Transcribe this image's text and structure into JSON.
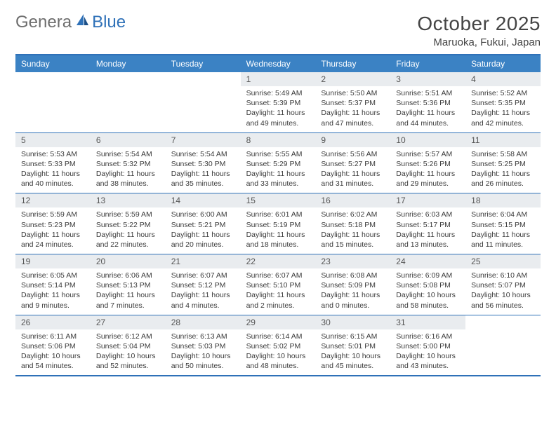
{
  "brand": {
    "part1": "Genera",
    "part2": "Blue"
  },
  "title": "October 2025",
  "location": "Maruoka, Fukui, Japan",
  "colors": {
    "header_bg": "#3b82c4",
    "border": "#2f71b8",
    "daynum_bg": "#e9ecef",
    "text": "#333333",
    "page_bg": "#ffffff"
  },
  "dow": [
    "Sunday",
    "Monday",
    "Tuesday",
    "Wednesday",
    "Thursday",
    "Friday",
    "Saturday"
  ],
  "weeks": [
    [
      {
        "n": "",
        "lines": []
      },
      {
        "n": "",
        "lines": []
      },
      {
        "n": "",
        "lines": []
      },
      {
        "n": "1",
        "lines": [
          "Sunrise: 5:49 AM",
          "Sunset: 5:39 PM",
          "Daylight: 11 hours",
          "and 49 minutes."
        ]
      },
      {
        "n": "2",
        "lines": [
          "Sunrise: 5:50 AM",
          "Sunset: 5:37 PM",
          "Daylight: 11 hours",
          "and 47 minutes."
        ]
      },
      {
        "n": "3",
        "lines": [
          "Sunrise: 5:51 AM",
          "Sunset: 5:36 PM",
          "Daylight: 11 hours",
          "and 44 minutes."
        ]
      },
      {
        "n": "4",
        "lines": [
          "Sunrise: 5:52 AM",
          "Sunset: 5:35 PM",
          "Daylight: 11 hours",
          "and 42 minutes."
        ]
      }
    ],
    [
      {
        "n": "5",
        "lines": [
          "Sunrise: 5:53 AM",
          "Sunset: 5:33 PM",
          "Daylight: 11 hours",
          "and 40 minutes."
        ]
      },
      {
        "n": "6",
        "lines": [
          "Sunrise: 5:54 AM",
          "Sunset: 5:32 PM",
          "Daylight: 11 hours",
          "and 38 minutes."
        ]
      },
      {
        "n": "7",
        "lines": [
          "Sunrise: 5:54 AM",
          "Sunset: 5:30 PM",
          "Daylight: 11 hours",
          "and 35 minutes."
        ]
      },
      {
        "n": "8",
        "lines": [
          "Sunrise: 5:55 AM",
          "Sunset: 5:29 PM",
          "Daylight: 11 hours",
          "and 33 minutes."
        ]
      },
      {
        "n": "9",
        "lines": [
          "Sunrise: 5:56 AM",
          "Sunset: 5:27 PM",
          "Daylight: 11 hours",
          "and 31 minutes."
        ]
      },
      {
        "n": "10",
        "lines": [
          "Sunrise: 5:57 AM",
          "Sunset: 5:26 PM",
          "Daylight: 11 hours",
          "and 29 minutes."
        ]
      },
      {
        "n": "11",
        "lines": [
          "Sunrise: 5:58 AM",
          "Sunset: 5:25 PM",
          "Daylight: 11 hours",
          "and 26 minutes."
        ]
      }
    ],
    [
      {
        "n": "12",
        "lines": [
          "Sunrise: 5:59 AM",
          "Sunset: 5:23 PM",
          "Daylight: 11 hours",
          "and 24 minutes."
        ]
      },
      {
        "n": "13",
        "lines": [
          "Sunrise: 5:59 AM",
          "Sunset: 5:22 PM",
          "Daylight: 11 hours",
          "and 22 minutes."
        ]
      },
      {
        "n": "14",
        "lines": [
          "Sunrise: 6:00 AM",
          "Sunset: 5:21 PM",
          "Daylight: 11 hours",
          "and 20 minutes."
        ]
      },
      {
        "n": "15",
        "lines": [
          "Sunrise: 6:01 AM",
          "Sunset: 5:19 PM",
          "Daylight: 11 hours",
          "and 18 minutes."
        ]
      },
      {
        "n": "16",
        "lines": [
          "Sunrise: 6:02 AM",
          "Sunset: 5:18 PM",
          "Daylight: 11 hours",
          "and 15 minutes."
        ]
      },
      {
        "n": "17",
        "lines": [
          "Sunrise: 6:03 AM",
          "Sunset: 5:17 PM",
          "Daylight: 11 hours",
          "and 13 minutes."
        ]
      },
      {
        "n": "18",
        "lines": [
          "Sunrise: 6:04 AM",
          "Sunset: 5:15 PM",
          "Daylight: 11 hours",
          "and 11 minutes."
        ]
      }
    ],
    [
      {
        "n": "19",
        "lines": [
          "Sunrise: 6:05 AM",
          "Sunset: 5:14 PM",
          "Daylight: 11 hours",
          "and 9 minutes."
        ]
      },
      {
        "n": "20",
        "lines": [
          "Sunrise: 6:06 AM",
          "Sunset: 5:13 PM",
          "Daylight: 11 hours",
          "and 7 minutes."
        ]
      },
      {
        "n": "21",
        "lines": [
          "Sunrise: 6:07 AM",
          "Sunset: 5:12 PM",
          "Daylight: 11 hours",
          "and 4 minutes."
        ]
      },
      {
        "n": "22",
        "lines": [
          "Sunrise: 6:07 AM",
          "Sunset: 5:10 PM",
          "Daylight: 11 hours",
          "and 2 minutes."
        ]
      },
      {
        "n": "23",
        "lines": [
          "Sunrise: 6:08 AM",
          "Sunset: 5:09 PM",
          "Daylight: 11 hours",
          "and 0 minutes."
        ]
      },
      {
        "n": "24",
        "lines": [
          "Sunrise: 6:09 AM",
          "Sunset: 5:08 PM",
          "Daylight: 10 hours",
          "and 58 minutes."
        ]
      },
      {
        "n": "25",
        "lines": [
          "Sunrise: 6:10 AM",
          "Sunset: 5:07 PM",
          "Daylight: 10 hours",
          "and 56 minutes."
        ]
      }
    ],
    [
      {
        "n": "26",
        "lines": [
          "Sunrise: 6:11 AM",
          "Sunset: 5:06 PM",
          "Daylight: 10 hours",
          "and 54 minutes."
        ]
      },
      {
        "n": "27",
        "lines": [
          "Sunrise: 6:12 AM",
          "Sunset: 5:04 PM",
          "Daylight: 10 hours",
          "and 52 minutes."
        ]
      },
      {
        "n": "28",
        "lines": [
          "Sunrise: 6:13 AM",
          "Sunset: 5:03 PM",
          "Daylight: 10 hours",
          "and 50 minutes."
        ]
      },
      {
        "n": "29",
        "lines": [
          "Sunrise: 6:14 AM",
          "Sunset: 5:02 PM",
          "Daylight: 10 hours",
          "and 48 minutes."
        ]
      },
      {
        "n": "30",
        "lines": [
          "Sunrise: 6:15 AM",
          "Sunset: 5:01 PM",
          "Daylight: 10 hours",
          "and 45 minutes."
        ]
      },
      {
        "n": "31",
        "lines": [
          "Sunrise: 6:16 AM",
          "Sunset: 5:00 PM",
          "Daylight: 10 hours",
          "and 43 minutes."
        ]
      },
      {
        "n": "",
        "lines": []
      }
    ]
  ]
}
